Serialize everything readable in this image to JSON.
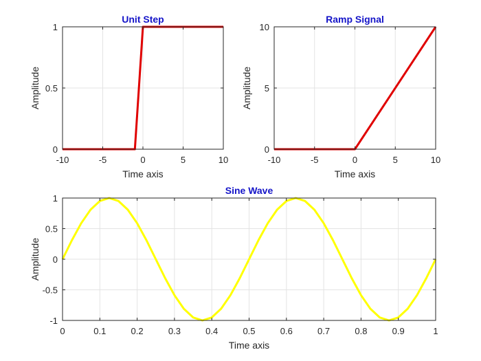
{
  "chart_data": [
    {
      "type": "line",
      "title": "Unit Step",
      "xlabel": "Time axis",
      "ylabel": "Amplitude",
      "xlim": [
        -10,
        10
      ],
      "ylim": [
        0,
        1
      ],
      "xticks": [
        -10,
        -5,
        0,
        5,
        10
      ],
      "yticks": [
        0,
        0.5,
        1
      ],
      "xtick_labels": [
        "-10",
        "-5",
        "0",
        "5",
        "10"
      ],
      "ytick_labels": [
        "0",
        "0.5",
        "1"
      ],
      "grid": true,
      "series": [
        {
          "color": "#e00000",
          "x": [
            -10,
            -1,
            0,
            10
          ],
          "y": [
            0,
            0,
            1,
            1
          ]
        }
      ]
    },
    {
      "type": "line",
      "title": "Ramp Signal",
      "xlabel": "Time axis",
      "ylabel": "Amplitude",
      "xlim": [
        -10,
        10
      ],
      "ylim": [
        0,
        10
      ],
      "xticks": [
        -10,
        -5,
        0,
        5,
        10
      ],
      "yticks": [
        0,
        5,
        10
      ],
      "xtick_labels": [
        "-10",
        "-5",
        "0",
        "5",
        "10"
      ],
      "ytick_labels": [
        "0",
        "5",
        "10"
      ],
      "grid": true,
      "series": [
        {
          "color": "#e00000",
          "x": [
            -10,
            0,
            10
          ],
          "y": [
            0,
            0,
            10
          ]
        }
      ]
    },
    {
      "type": "line",
      "title": "Sine Wave",
      "xlabel": "Time axis",
      "ylabel": "Amplitude",
      "xlim": [
        0,
        1
      ],
      "ylim": [
        -1,
        1
      ],
      "xticks": [
        0,
        0.1,
        0.2,
        0.3,
        0.4,
        0.5,
        0.6,
        0.7,
        0.8,
        0.9,
        1
      ],
      "yticks": [
        -1,
        -0.5,
        0,
        0.5,
        1
      ],
      "xtick_labels": [
        "0",
        "0.1",
        "0.2",
        "0.3",
        "0.4",
        "0.5",
        "0.6",
        "0.7",
        "0.8",
        "0.9",
        "1"
      ],
      "ytick_labels": [
        "-1",
        "-0.5",
        "0",
        "0.5",
        "1"
      ],
      "grid": true,
      "series": [
        {
          "color": "#ffff00",
          "x": [
            0,
            0.025,
            0.05,
            0.075,
            0.1,
            0.125,
            0.15,
            0.175,
            0.2,
            0.225,
            0.25,
            0.275,
            0.3,
            0.325,
            0.35,
            0.375,
            0.4,
            0.425,
            0.45,
            0.475,
            0.5,
            0.525,
            0.55,
            0.575,
            0.6,
            0.625,
            0.65,
            0.675,
            0.7,
            0.725,
            0.75,
            0.775,
            0.8,
            0.825,
            0.85,
            0.875,
            0.9,
            0.925,
            0.95,
            0.975,
            1
          ],
          "y": [
            0,
            0.309,
            0.588,
            0.809,
            0.951,
            1,
            0.951,
            0.809,
            0.588,
            0.309,
            0,
            -0.309,
            -0.588,
            -0.809,
            -0.951,
            -1,
            -0.951,
            -0.809,
            -0.588,
            -0.309,
            0,
            0.309,
            0.588,
            0.809,
            0.951,
            1,
            0.951,
            0.809,
            0.588,
            0.309,
            0,
            -0.309,
            -0.588,
            -0.809,
            -0.951,
            -1,
            -0.951,
            -0.809,
            -0.588,
            -0.309,
            0
          ]
        }
      ]
    }
  ]
}
